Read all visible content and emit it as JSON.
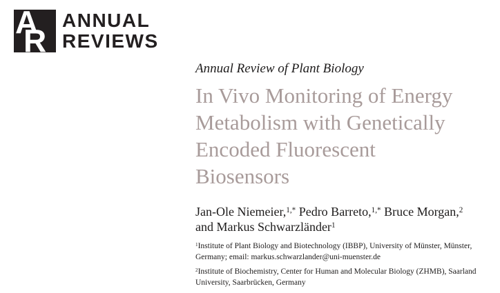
{
  "brand": {
    "monogram": {
      "a": "A",
      "r": "R"
    },
    "name_line1": "ANNUAL",
    "name_line2": "REVIEWS"
  },
  "article": {
    "journal": "Annual Review of Plant Biology",
    "title_lines": [
      "In Vivo Monitoring of Energy",
      "Metabolism with Genetically",
      "Encoded Fluorescent",
      "Biosensors"
    ],
    "author_lines": [
      [
        {
          "text": "Jan-Ole Niemeier,"
        },
        {
          "sup": "1,*"
        },
        {
          "text": " Pedro Barreto,"
        },
        {
          "sup": "1,*"
        },
        {
          "text": " Bruce Morgan,"
        },
        {
          "sup": "2"
        }
      ],
      [
        {
          "text": "and Markus Schwarzländer"
        },
        {
          "sup": "1"
        }
      ]
    ],
    "affiliations": [
      {
        "sup": "1",
        "text": "Institute of Plant Biology and Biotechnology (IBBP), University of Münster, Münster, Germany; email: markus.schwarzlander@uni-muenster.de"
      },
      {
        "sup": "2",
        "text": "Institute of Biochemistry, Center for Human and Molecular Biology (ZHMB), Saarland University, Saarbrücken, Germany"
      }
    ]
  },
  "colors": {
    "ink": "#231f20",
    "title_color": "#a89b9a",
    "logo_background": "#231f20"
  }
}
